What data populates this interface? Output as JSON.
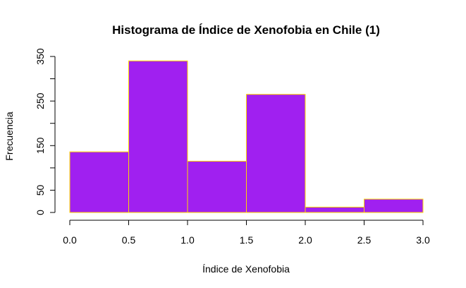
{
  "chart_data": {
    "type": "bar",
    "title": "Histograma de Índice de Xenofobia en Chile (1)",
    "xlabel": "Índice de Xenofobia",
    "ylabel": "Frecuencia",
    "bins": [
      {
        "start": 0.0,
        "end": 0.5,
        "count": 136
      },
      {
        "start": 0.5,
        "end": 1.0,
        "count": 340
      },
      {
        "start": 1.0,
        "end": 1.5,
        "count": 115
      },
      {
        "start": 1.5,
        "end": 2.0,
        "count": 265
      },
      {
        "start": 2.0,
        "end": 2.5,
        "count": 12
      },
      {
        "start": 2.5,
        "end": 3.0,
        "count": 30
      }
    ],
    "xlim": [
      0,
      3
    ],
    "ylim": [
      0,
      350
    ],
    "xticks": [
      0.0,
      0.5,
      1.0,
      1.5,
      2.0,
      2.5,
      3.0
    ],
    "xtick_labels": [
      "0.0",
      "0.5",
      "1.0",
      "1.5",
      "2.0",
      "2.5",
      "3.0"
    ],
    "yticks": [
      0,
      50,
      100,
      150,
      200,
      250,
      300,
      350
    ],
    "ytick_labels": [
      "0",
      "50",
      "",
      "150",
      "",
      "250",
      "",
      "350"
    ],
    "bar_fill": "#a020f0",
    "bar_border": "#ffd700",
    "grid": false
  }
}
